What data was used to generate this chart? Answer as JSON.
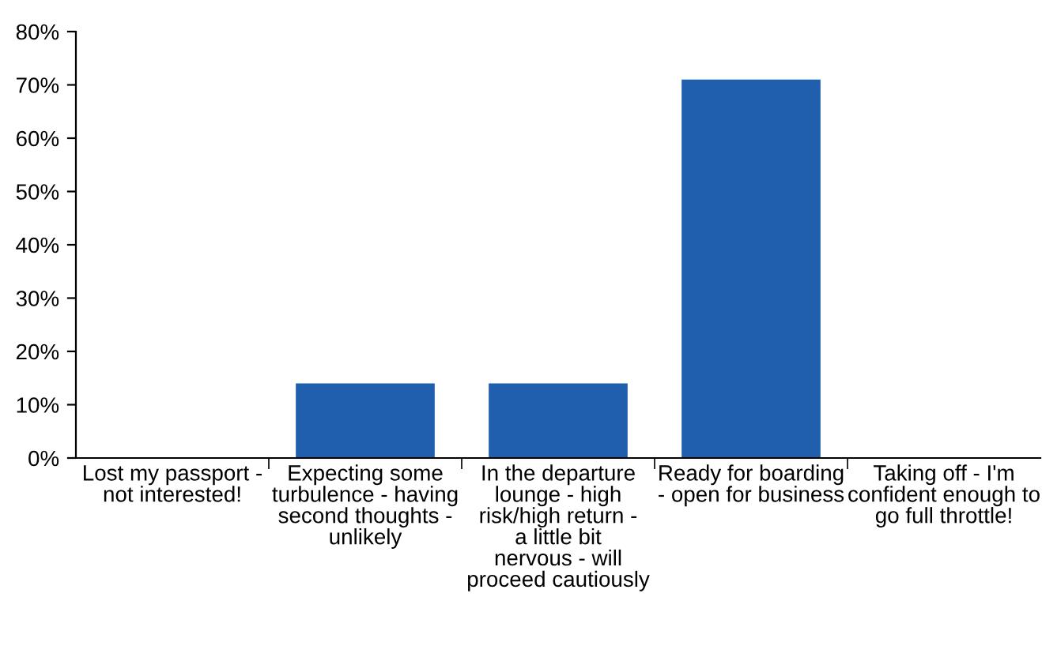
{
  "chart_data": {
    "type": "bar",
    "categories": [
      "Lost my passport - not interested!",
      "Expecting some turbulence - having second thoughts - unlikely",
      "In the departure lounge - high risk/high return - a little bit nervous - will proceed cautiously",
      "Ready for boarding - open for business",
      "Taking off - I'm confident enough to go full throttle!"
    ],
    "values": [
      0,
      14,
      14,
      71,
      0
    ],
    "color": "#1f5fad",
    "ylim": [
      0,
      80
    ],
    "yticks": [
      {
        "value": 0,
        "label": "0%"
      },
      {
        "value": 10,
        "label": "10%"
      },
      {
        "value": 20,
        "label": "20%"
      },
      {
        "value": 30,
        "label": "30%"
      },
      {
        "value": 40,
        "label": "40%"
      },
      {
        "value": 50,
        "label": "50%"
      },
      {
        "value": 60,
        "label": "60%"
      },
      {
        "value": 70,
        "label": "70%"
      },
      {
        "value": 80,
        "label": "80%"
      }
    ],
    "grid": false,
    "legend": false
  }
}
